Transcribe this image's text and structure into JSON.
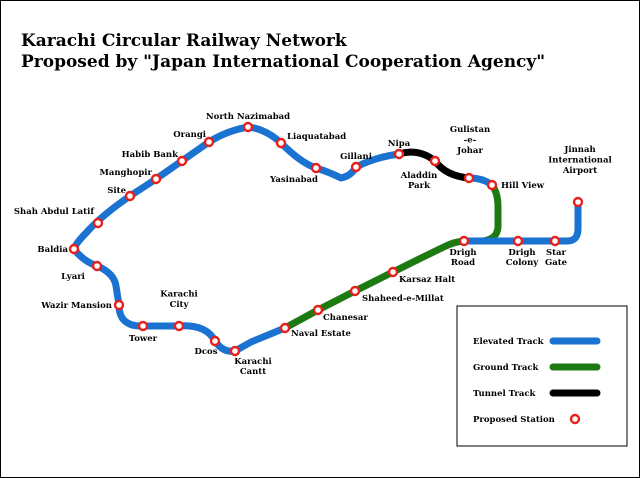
{
  "title": {
    "line1": "Karachi Circular Railway Network",
    "line2": "Proposed by \"Japan International Cooperation Agency\""
  },
  "colors": {
    "elevated": "#1a72d1",
    "ground": "#1d7a12",
    "tunnel": "#000000",
    "station_ring": "#e8201c",
    "station_fill": "#ffffff"
  },
  "stations": [
    {
      "id": "north-nazimabad",
      "label": [
        "North Nazimabad"
      ]
    },
    {
      "id": "liaquatabad",
      "label": [
        "Liaquatabad"
      ]
    },
    {
      "id": "yasinabad",
      "label": [
        "Yasinabad"
      ]
    },
    {
      "id": "gillani",
      "label": [
        "Gillani"
      ]
    },
    {
      "id": "nipa",
      "label": [
        "Nipa"
      ]
    },
    {
      "id": "aladdin-park",
      "label": [
        "Aladdin",
        "Park"
      ]
    },
    {
      "id": "gulistan-e-johar",
      "label": [
        "Gulistan",
        "-e-",
        "Johar"
      ]
    },
    {
      "id": "hill-view",
      "label": [
        "Hill View"
      ]
    },
    {
      "id": "orangi",
      "label": [
        "Orangi"
      ]
    },
    {
      "id": "habib-bank",
      "label": [
        "Habib Bank"
      ]
    },
    {
      "id": "manghopir",
      "label": [
        "Manghopir"
      ]
    },
    {
      "id": "site",
      "label": [
        "Site"
      ]
    },
    {
      "id": "shah-abdul-latif",
      "label": [
        "Shah Abdul Latif"
      ]
    },
    {
      "id": "baldia",
      "label": [
        "Baldia"
      ]
    },
    {
      "id": "lyari",
      "label": [
        "Lyari"
      ]
    },
    {
      "id": "wazir-mansion",
      "label": [
        "Wazir Mansion"
      ]
    },
    {
      "id": "tower",
      "label": [
        "Tower"
      ]
    },
    {
      "id": "karachi-city",
      "label": [
        "Karachi",
        "City"
      ]
    },
    {
      "id": "dcos",
      "label": [
        "Dcos"
      ]
    },
    {
      "id": "karachi-cantt",
      "label": [
        "Karachi",
        "Cantt"
      ]
    },
    {
      "id": "naval-estate",
      "label": [
        "Naval Estate"
      ]
    },
    {
      "id": "chanesar",
      "label": [
        "Chanesar"
      ]
    },
    {
      "id": "shaheed-e-millat",
      "label": [
        "Shaheed-e-Millat"
      ]
    },
    {
      "id": "karsaz-halt",
      "label": [
        "Karsaz Halt"
      ]
    },
    {
      "id": "drigh-road",
      "label": [
        "Drigh",
        "Road"
      ]
    },
    {
      "id": "drigh-colony",
      "label": [
        "Drigh",
        "Colony"
      ]
    },
    {
      "id": "star-gate",
      "label": [
        "Star",
        "Gate"
      ]
    },
    {
      "id": "jinnah-international-airport",
      "label": [
        "Jinnah",
        "International",
        "Airport"
      ]
    }
  ],
  "legend": {
    "items": [
      {
        "id": "elevated",
        "label": "Elevated Track",
        "kind": "line",
        "color": "#1a72d1"
      },
      {
        "id": "ground",
        "label": "Ground Track",
        "kind": "line",
        "color": "#1d7a12"
      },
      {
        "id": "tunnel",
        "label": "Tunnel Track",
        "kind": "line",
        "color": "#000000"
      },
      {
        "id": "station",
        "label": "Proposed Station",
        "kind": "station",
        "color": "#e8201c"
      }
    ]
  }
}
